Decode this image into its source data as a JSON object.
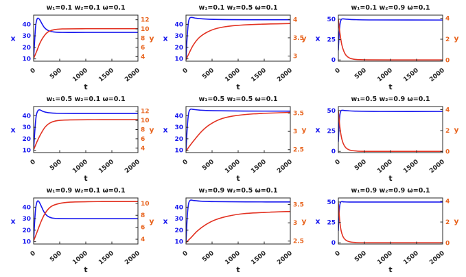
{
  "colors": {
    "blue": "#1616ee",
    "red": "#e23222",
    "orange": "#e8641e",
    "axis": "#262626",
    "title": "#1a1a1a"
  },
  "chart_data": [
    {
      "type": "line",
      "title": "w₁=0.1 w₂=0.1 ω=0.1",
      "xlabel": "t",
      "xlim": [
        0,
        2000
      ],
      "x_ticks": [
        0,
        500,
        1000,
        1500,
        2000
      ],
      "left_axis": {
        "label": "x",
        "ticks": [
          10,
          20,
          30,
          40
        ],
        "lim": [
          8,
          48
        ]
      },
      "right_axis": {
        "label": "y",
        "ticks": [
          4,
          6,
          8,
          10,
          12
        ],
        "lim": [
          3,
          13
        ]
      },
      "series": [
        {
          "name": "x",
          "axis": "left",
          "color_key": "blue",
          "points": [
            [
              0,
              10
            ],
            [
              20,
              26
            ],
            [
              40,
              39
            ],
            [
              65,
              44.5
            ],
            [
              90,
              45.3
            ],
            [
              120,
              43.8
            ],
            [
              160,
              40.5
            ],
            [
              210,
              37
            ],
            [
              280,
              34.6
            ],
            [
              380,
              33.4
            ],
            [
              550,
              33
            ],
            [
              1000,
              33
            ],
            [
              2000,
              33
            ]
          ]
        },
        {
          "name": "y",
          "axis": "right",
          "color_key": "red",
          "points": [
            [
              0,
              3.6
            ],
            [
              60,
              5.2
            ],
            [
              120,
              6.9
            ],
            [
              190,
              8.3
            ],
            [
              270,
              9.3
            ],
            [
              380,
              9.8
            ],
            [
              550,
              10
            ],
            [
              1000,
              10.05
            ],
            [
              2000,
              10.05
            ]
          ]
        }
      ]
    },
    {
      "type": "line",
      "title": "w₁=0.1 w₂=0.5 ω=0.1",
      "xlabel": "t",
      "xlim": [
        0,
        2000
      ],
      "x_ticks": [
        0,
        500,
        1000,
        1500,
        2000
      ],
      "left_axis": {
        "label": "x",
        "ticks": [
          10,
          20,
          30,
          40
        ],
        "lim": [
          8,
          48
        ]
      },
      "right_axis": {
        "label": "y",
        "ticks": [
          3,
          3.5,
          4
        ],
        "lim": [
          2.86,
          4.12
        ]
      },
      "series": [
        {
          "name": "x",
          "axis": "left",
          "color_key": "blue",
          "points": [
            [
              0,
              10
            ],
            [
              20,
              27
            ],
            [
              45,
              41
            ],
            [
              70,
              45.3
            ],
            [
              110,
              46
            ],
            [
              180,
              45.4
            ],
            [
              300,
              44.8
            ],
            [
              600,
              44.2
            ],
            [
              1200,
              44
            ],
            [
              2000,
              44
            ]
          ]
        },
        {
          "name": "y",
          "axis": "right",
          "color_key": "red",
          "points": [
            [
              0,
              2.9
            ],
            [
              60,
              3.08
            ],
            [
              140,
              3.3
            ],
            [
              250,
              3.5
            ],
            [
              400,
              3.65
            ],
            [
              600,
              3.76
            ],
            [
              900,
              3.83
            ],
            [
              1400,
              3.87
            ],
            [
              2000,
              3.89
            ]
          ]
        }
      ]
    },
    {
      "type": "line",
      "title": "w₁=0.1 w₂=0.9 ω=0.1",
      "xlabel": "t",
      "xlim": [
        0,
        2000
      ],
      "x_ticks": [
        0,
        500,
        1000,
        1500,
        2000
      ],
      "left_axis": {
        "label": "x",
        "ticks": [
          0,
          25,
          50
        ],
        "lim": [
          -1.5,
          55
        ]
      },
      "right_axis": {
        "label": "y",
        "ticks": [
          0,
          2,
          4
        ],
        "lim": [
          -0.1,
          4.3
        ]
      },
      "series": [
        {
          "name": "x",
          "axis": "left",
          "color_key": "blue",
          "points": [
            [
              0,
              12
            ],
            [
              15,
              31
            ],
            [
              32,
              44
            ],
            [
              55,
              49.5
            ],
            [
              85,
              50.4
            ],
            [
              140,
              50.1
            ],
            [
              300,
              49.5
            ],
            [
              700,
              49.1
            ],
            [
              2000,
              49
            ]
          ]
        },
        {
          "name": "y",
          "axis": "right",
          "color_key": "red",
          "points": [
            [
              0,
              3.9
            ],
            [
              30,
              2.6
            ],
            [
              65,
              1.5
            ],
            [
              105,
              0.85
            ],
            [
              155,
              0.42
            ],
            [
              225,
              0.18
            ],
            [
              330,
              0.07
            ],
            [
              550,
              0.03
            ],
            [
              1200,
              0.02
            ],
            [
              2000,
              0.02
            ]
          ]
        }
      ]
    },
    {
      "type": "line",
      "title": "w₁=0.5 w₂=0.1 ω=0.1",
      "xlabel": "t",
      "xlim": [
        0,
        2000
      ],
      "x_ticks": [
        0,
        500,
        1000,
        1500,
        2000
      ],
      "left_axis": {
        "label": "x",
        "ticks": [
          10,
          20,
          30,
          40
        ],
        "lim": [
          8,
          48
        ]
      },
      "right_axis": {
        "label": "y",
        "ticks": [
          4,
          6,
          8,
          10,
          12
        ],
        "lim": [
          3,
          13
        ]
      },
      "series": [
        {
          "name": "x",
          "axis": "left",
          "color_key": "blue",
          "points": [
            [
              0,
              10
            ],
            [
              25,
              28
            ],
            [
              50,
              40
            ],
            [
              85,
              44.6
            ],
            [
              125,
              45
            ],
            [
              190,
              43.6
            ],
            [
              290,
              42.6
            ],
            [
              460,
              42.1
            ],
            [
              900,
              42
            ],
            [
              2000,
              42
            ]
          ]
        },
        {
          "name": "y",
          "axis": "right",
          "color_key": "red",
          "points": [
            [
              0,
              3.6
            ],
            [
              70,
              5.5
            ],
            [
              145,
              7.2
            ],
            [
              225,
              8.6
            ],
            [
              325,
              9.5
            ],
            [
              460,
              9.95
            ],
            [
              700,
              10.1
            ],
            [
              1300,
              10.15
            ],
            [
              2000,
              10.15
            ]
          ]
        }
      ]
    },
    {
      "type": "line",
      "title": "w₁=0.5 w₂=0.5 ω=0.1",
      "xlabel": "t",
      "xlim": [
        0,
        2000
      ],
      "x_ticks": [
        0,
        500,
        1000,
        1500,
        2000
      ],
      "left_axis": {
        "label": "x",
        "ticks": [
          10,
          20,
          30,
          40
        ],
        "lim": [
          8,
          48
        ]
      },
      "right_axis": {
        "label": "y",
        "ticks": [
          2.5,
          3,
          3.5
        ],
        "lim": [
          2.42,
          3.68
        ]
      },
      "series": [
        {
          "name": "x",
          "axis": "left",
          "color_key": "blue",
          "points": [
            [
              0,
              10
            ],
            [
              25,
              30
            ],
            [
              50,
              42
            ],
            [
              85,
              45.6
            ],
            [
              140,
              45.5
            ],
            [
              260,
              44.9
            ],
            [
              520,
              44.4
            ],
            [
              1100,
              44.1
            ],
            [
              2000,
              44
            ]
          ]
        },
        {
          "name": "y",
          "axis": "right",
          "color_key": "red",
          "points": [
            [
              0,
              2.46
            ],
            [
              80,
              2.62
            ],
            [
              180,
              2.8
            ],
            [
              300,
              3.0
            ],
            [
              450,
              3.18
            ],
            [
              650,
              3.33
            ],
            [
              900,
              3.42
            ],
            [
              1300,
              3.48
            ],
            [
              2000,
              3.52
            ]
          ]
        }
      ]
    },
    {
      "type": "line",
      "title": "w₁=0.5 w₂=0.9 ω=0.1",
      "xlabel": "t",
      "xlim": [
        0,
        2000
      ],
      "x_ticks": [
        0,
        500,
        1000,
        1500,
        2000
      ],
      "left_axis": {
        "label": "x",
        "ticks": [
          0,
          25,
          50
        ],
        "lim": [
          -1.5,
          55
        ]
      },
      "right_axis": {
        "label": "y",
        "ticks": [
          0,
          2,
          4
        ],
        "lim": [
          -0.1,
          4.3
        ]
      },
      "series": [
        {
          "name": "x",
          "axis": "left",
          "color_key": "blue",
          "points": [
            [
              0,
              12
            ],
            [
              15,
              33
            ],
            [
              30,
              45
            ],
            [
              50,
              49.7
            ],
            [
              80,
              50.4
            ],
            [
              140,
              50
            ],
            [
              320,
              49.4
            ],
            [
              800,
              49
            ],
            [
              2000,
              49
            ]
          ]
        },
        {
          "name": "y",
          "axis": "right",
          "color_key": "red",
          "points": [
            [
              0,
              3.9
            ],
            [
              28,
              2.4
            ],
            [
              60,
              1.35
            ],
            [
              100,
              0.7
            ],
            [
              150,
              0.33
            ],
            [
              220,
              0.14
            ],
            [
              330,
              0.06
            ],
            [
              600,
              0.02
            ],
            [
              2000,
              0.02
            ]
          ]
        }
      ]
    },
    {
      "type": "line",
      "title": "w₁=0.9 w₂=0.1 ω=0.1",
      "xlabel": "t",
      "xlim": [
        0,
        2000
      ],
      "x_ticks": [
        0,
        500,
        1000,
        1500,
        2000
      ],
      "left_axis": {
        "label": "x",
        "ticks": [
          10,
          20,
          30,
          40
        ],
        "lim": [
          8,
          48
        ]
      },
      "right_axis": {
        "label": "y",
        "ticks": [
          4,
          6,
          8,
          10
        ],
        "lim": [
          3.2,
          10.9
        ]
      },
      "series": [
        {
          "name": "x",
          "axis": "left",
          "color_key": "blue",
          "points": [
            [
              0,
              10
            ],
            [
              18,
              26
            ],
            [
              38,
              38.5
            ],
            [
              60,
              44
            ],
            [
              82,
              45.5
            ],
            [
              110,
              44.2
            ],
            [
              150,
              40.5
            ],
            [
              200,
              35.8
            ],
            [
              265,
              32.3
            ],
            [
              350,
              30.6
            ],
            [
              480,
              30.1
            ],
            [
              800,
              30
            ],
            [
              2000,
              30
            ]
          ]
        },
        {
          "name": "y",
          "axis": "right",
          "color_key": "red",
          "points": [
            [
              0,
              3.7
            ],
            [
              70,
              5.3
            ],
            [
              145,
              7.0
            ],
            [
              225,
              8.4
            ],
            [
              325,
              9.4
            ],
            [
              460,
              9.9
            ],
            [
              700,
              10.2
            ],
            [
              1300,
              10.3
            ],
            [
              2000,
              10.3
            ]
          ]
        }
      ]
    },
    {
      "type": "line",
      "title": "w₁=0.9 w₂=0.5 ω=0.1",
      "xlabel": "t",
      "xlim": [
        0,
        2000
      ],
      "x_ticks": [
        0,
        500,
        1000,
        1500,
        2000
      ],
      "left_axis": {
        "label": "x",
        "ticks": [
          10,
          20,
          30,
          40
        ],
        "lim": [
          8,
          48
        ]
      },
      "right_axis": {
        "label": "y",
        "ticks": [
          2.5,
          3,
          3.5
        ],
        "lim": [
          2.42,
          3.68
        ]
      },
      "series": [
        {
          "name": "x",
          "axis": "left",
          "color_key": "blue",
          "points": [
            [
              0,
              10
            ],
            [
              25,
              32
            ],
            [
              50,
              43
            ],
            [
              85,
              46
            ],
            [
              145,
              45.8
            ],
            [
              280,
              45.2
            ],
            [
              560,
              44.8
            ],
            [
              1200,
              44.6
            ],
            [
              2000,
              44.5
            ]
          ]
        },
        {
          "name": "y",
          "axis": "right",
          "color_key": "red",
          "points": [
            [
              0,
              2.46
            ],
            [
              100,
              2.6
            ],
            [
              220,
              2.78
            ],
            [
              380,
              2.95
            ],
            [
              560,
              3.08
            ],
            [
              800,
              3.18
            ],
            [
              1100,
              3.25
            ],
            [
              1600,
              3.29
            ],
            [
              2000,
              3.31
            ]
          ]
        }
      ]
    },
    {
      "type": "line",
      "title": "w₁=0.9 w₂=0.9 ω=0.1",
      "xlabel": "t",
      "xlim": [
        0,
        2000
      ],
      "x_ticks": [
        0,
        500,
        1000,
        1500,
        2000
      ],
      "left_axis": {
        "label": "x",
        "ticks": [
          0,
          25,
          50
        ],
        "lim": [
          -1.5,
          55
        ]
      },
      "right_axis": {
        "label": "y",
        "ticks": [
          0,
          2,
          4
        ],
        "lim": [
          -0.1,
          4.3
        ]
      },
      "series": [
        {
          "name": "x",
          "axis": "left",
          "color_key": "blue",
          "points": [
            [
              0,
              15
            ],
            [
              12,
              34
            ],
            [
              25,
              45
            ],
            [
              42,
              49.6
            ],
            [
              65,
              50.5
            ],
            [
              110,
              50.2
            ],
            [
              250,
              50
            ],
            [
              800,
              50
            ],
            [
              2000,
              50
            ]
          ]
        },
        {
          "name": "y",
          "axis": "right",
          "color_key": "red",
          "points": [
            [
              0,
              3.8
            ],
            [
              25,
              2.2
            ],
            [
              52,
              1.2
            ],
            [
              88,
              0.62
            ],
            [
              135,
              0.3
            ],
            [
              200,
              0.13
            ],
            [
              310,
              0.05
            ],
            [
              600,
              0.02
            ],
            [
              2000,
              0.02
            ]
          ]
        }
      ]
    }
  ]
}
